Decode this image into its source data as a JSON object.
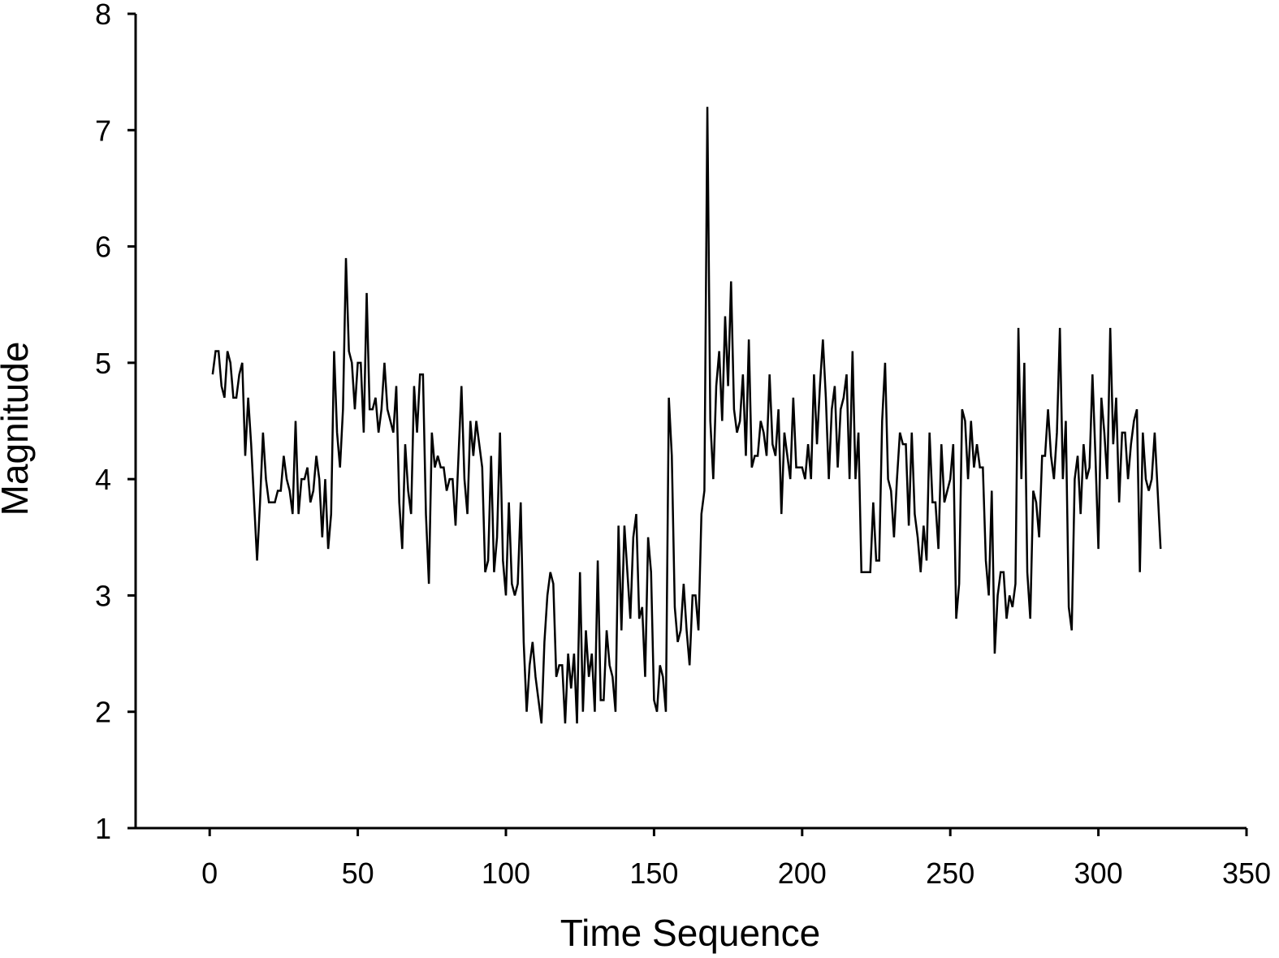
{
  "chart_data": {
    "type": "line",
    "xlabel": "Time Sequence",
    "ylabel": "Magnitude",
    "xlim": [
      -25,
      350
    ],
    "xticks": [
      0,
      50,
      100,
      150,
      200,
      250,
      300,
      350
    ],
    "ylim": [
      1,
      8
    ],
    "yticks": [
      1,
      2,
      3,
      4,
      5,
      6,
      7,
      8
    ],
    "color": "#000000",
    "x": [
      1,
      2,
      3,
      4,
      5,
      6,
      7,
      8,
      9,
      10,
      11,
      12,
      13,
      14,
      15,
      16,
      17,
      18,
      19,
      20,
      21,
      22,
      23,
      24,
      25,
      26,
      27,
      28,
      29,
      30,
      31,
      32,
      33,
      34,
      35,
      36,
      37,
      38,
      39,
      40,
      41,
      42,
      43,
      44,
      45,
      46,
      47,
      48,
      49,
      50,
      51,
      52,
      53,
      54,
      55,
      56,
      57,
      58,
      59,
      60,
      61,
      62,
      63,
      64,
      65,
      66,
      67,
      68,
      69,
      70,
      71,
      72,
      73,
      74,
      75,
      76,
      77,
      78,
      79,
      80,
      81,
      82,
      83,
      84,
      85,
      86,
      87,
      88,
      89,
      90,
      91,
      92,
      93,
      94,
      95,
      96,
      97,
      98,
      99,
      100,
      101,
      102,
      103,
      104,
      105,
      106,
      107,
      108,
      109,
      110,
      111,
      112,
      113,
      114,
      115,
      116,
      117,
      118,
      119,
      120,
      121,
      122,
      123,
      124,
      125,
      126,
      127,
      128,
      129,
      130,
      131,
      132,
      133,
      134,
      135,
      136,
      137,
      138,
      139,
      140,
      141,
      142,
      143,
      144,
      145,
      146,
      147,
      148,
      149,
      150,
      151,
      152,
      153,
      154,
      155,
      156,
      157,
      158,
      159,
      160,
      161,
      162,
      163,
      164,
      165,
      166,
      167,
      168,
      169,
      170,
      171,
      172,
      173,
      174,
      175,
      176,
      177,
      178,
      179,
      180,
      181,
      182,
      183,
      184,
      185,
      186,
      187,
      188,
      189,
      190,
      191,
      192,
      193,
      194,
      195,
      196,
      197,
      198,
      199,
      200,
      201,
      202,
      203,
      204,
      205,
      206,
      207,
      208,
      209,
      210,
      211,
      212,
      213,
      214,
      215,
      216,
      217,
      218,
      219,
      220,
      221,
      222,
      223,
      224,
      225,
      226,
      227,
      228,
      229,
      230,
      231,
      232,
      233,
      234,
      235,
      236,
      237,
      238,
      239,
      240,
      241,
      242,
      243,
      244,
      245,
      246,
      247,
      248,
      249,
      250,
      251,
      252,
      253,
      254,
      255,
      256,
      257,
      258,
      259,
      260,
      261,
      262,
      263,
      264,
      265,
      266,
      267,
      268,
      269,
      270,
      271,
      272,
      273,
      274,
      275,
      276,
      277,
      278,
      279,
      280,
      281,
      282,
      283,
      284,
      285,
      286,
      287,
      288,
      289,
      290,
      291,
      292,
      293,
      294,
      295,
      296,
      297,
      298,
      299,
      300,
      301,
      302,
      303,
      304,
      305,
      306,
      307,
      308,
      309,
      310,
      311,
      312,
      313,
      314,
      315,
      316,
      317,
      318,
      319,
      320,
      321
    ],
    "values": [
      4.9,
      5.1,
      5.1,
      4.8,
      4.7,
      5.1,
      5.0,
      4.7,
      4.7,
      4.9,
      5.0,
      4.2,
      4.7,
      4.3,
      3.8,
      3.3,
      3.8,
      4.4,
      4.0,
      3.8,
      3.8,
      3.8,
      3.9,
      3.9,
      4.2,
      4.0,
      3.9,
      3.7,
      4.5,
      3.7,
      4.0,
      4.0,
      4.1,
      3.8,
      3.9,
      4.2,
      4.0,
      3.5,
      4.0,
      3.4,
      3.7,
      5.1,
      4.4,
      4.1,
      4.6,
      5.9,
      5.1,
      5.0,
      4.6,
      5.0,
      5.0,
      4.4,
      5.6,
      4.6,
      4.6,
      4.7,
      4.4,
      4.6,
      5.0,
      4.6,
      4.5,
      4.4,
      4.8,
      3.8,
      3.4,
      4.3,
      3.9,
      3.7,
      4.8,
      4.4,
      4.9,
      4.9,
      3.7,
      3.1,
      4.4,
      4.1,
      4.2,
      4.1,
      4.1,
      3.9,
      4.0,
      4.0,
      3.6,
      4.2,
      4.8,
      4.0,
      3.7,
      4.5,
      4.2,
      4.5,
      4.3,
      4.1,
      3.2,
      3.3,
      4.2,
      3.2,
      3.5,
      4.4,
      3.3,
      3.0,
      3.8,
      3.1,
      3.0,
      3.1,
      3.8,
      2.6,
      2.0,
      2.4,
      2.6,
      2.3,
      2.1,
      1.9,
      2.6,
      3.0,
      3.2,
      3.1,
      2.3,
      2.4,
      2.4,
      1.9,
      2.5,
      2.2,
      2.5,
      1.9,
      3.2,
      2.0,
      2.7,
      2.3,
      2.5,
      2.0,
      3.3,
      2.1,
      2.1,
      2.7,
      2.4,
      2.3,
      2.0,
      3.6,
      2.7,
      3.6,
      3.2,
      2.8,
      3.5,
      3.7,
      2.8,
      2.9,
      2.3,
      3.5,
      3.2,
      2.1,
      2.0,
      2.4,
      2.3,
      2.0,
      4.7,
      4.2,
      2.9,
      2.6,
      2.7,
      3.1,
      2.7,
      2.4,
      3.0,
      3.0,
      2.7,
      3.7,
      3.9,
      7.2,
      4.5,
      4.0,
      4.8,
      5.1,
      4.5,
      5.4,
      4.8,
      5.7,
      4.6,
      4.4,
      4.5,
      4.9,
      4.2,
      5.2,
      4.1,
      4.2,
      4.2,
      4.5,
      4.4,
      4.2,
      4.9,
      4.3,
      4.2,
      4.6,
      3.7,
      4.4,
      4.2,
      4.0,
      4.7,
      4.1,
      4.1,
      4.1,
      4.0,
      4.3,
      4.0,
      4.9,
      4.3,
      4.8,
      5.2,
      4.7,
      4.0,
      4.6,
      4.8,
      4.1,
      4.6,
      4.7,
      4.9,
      4.0,
      5.1,
      4.0,
      4.4,
      3.2,
      3.2,
      3.2,
      3.2,
      3.8,
      3.3,
      3.3,
      4.5,
      5.0,
      4.0,
      3.9,
      3.5,
      4.0,
      4.4,
      4.3,
      4.3,
      3.6,
      4.4,
      3.7,
      3.5,
      3.2,
      3.6,
      3.3,
      4.4,
      3.8,
      3.8,
      3.4,
      4.3,
      3.8,
      3.9,
      4.0,
      4.3,
      2.8,
      3.1,
      4.6,
      4.5,
      4.0,
      4.5,
      4.1,
      4.3,
      4.1,
      4.1,
      3.3,
      3.0,
      3.9,
      2.5,
      3.0,
      3.2,
      3.2,
      2.8,
      3.0,
      2.9,
      3.1,
      5.3,
      4.0,
      5.0,
      3.2,
      2.8,
      3.9,
      3.8,
      3.5,
      4.2,
      4.2,
      4.6,
      4.2,
      4.0,
      4.4,
      5.3,
      4.0,
      4.5,
      2.9,
      2.7,
      4.0,
      4.2,
      3.7,
      4.3,
      4.0,
      4.1,
      4.9,
      4.2,
      3.4,
      4.7,
      4.4,
      4.0,
      5.3,
      4.3,
      4.7,
      3.8,
      4.4,
      4.4,
      4.0,
      4.3,
      4.5,
      4.6,
      3.2,
      4.4,
      4.0,
      3.9,
      4.0,
      4.4,
      3.9,
      3.4
    ]
  }
}
